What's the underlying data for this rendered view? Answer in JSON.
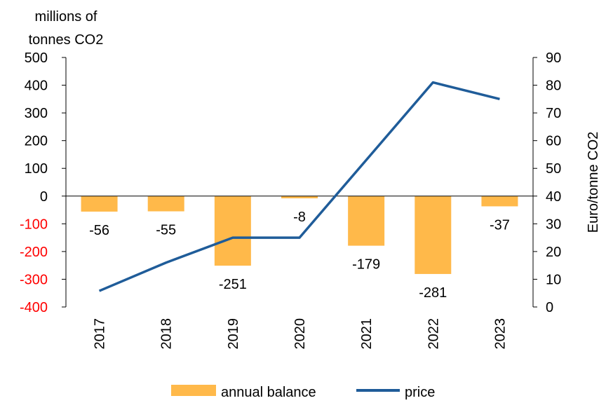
{
  "chart_data": {
    "type": "bar",
    "categories": [
      "2017",
      "2018",
      "2019",
      "2020",
      "2021",
      "2022",
      "2023"
    ],
    "series": [
      {
        "name": "annual balance",
        "kind": "bar",
        "axis": "left",
        "values": [
          -56,
          -55,
          -251,
          -8,
          -179,
          -281,
          -37
        ],
        "color": "#FFB94A"
      },
      {
        "name": "price",
        "kind": "line",
        "axis": "right",
        "values": [
          5.8,
          16,
          25,
          25,
          53,
          81,
          75
        ],
        "color": "#1F5C99"
      }
    ],
    "data_labels": [
      "-56",
      "-55",
      "-251",
      "-8",
      "-179",
      "-281",
      "-37"
    ],
    "y_left": {
      "label_lines": [
        "millions of",
        "tonnes CO2"
      ],
      "ylim": [
        -400,
        500
      ],
      "ticks": [
        500,
        400,
        300,
        200,
        100,
        0,
        -100,
        -200,
        -300,
        -400
      ],
      "negative_tick_color": "#FF0000"
    },
    "y_right": {
      "label": "Euro/tonne CO2",
      "ylim": [
        0,
        90
      ],
      "ticks": [
        90,
        80,
        70,
        60,
        50,
        40,
        30,
        20,
        10,
        0
      ]
    },
    "legend": {
      "position": "bottom",
      "entries": [
        "annual balance",
        "price"
      ]
    },
    "grid": false
  }
}
